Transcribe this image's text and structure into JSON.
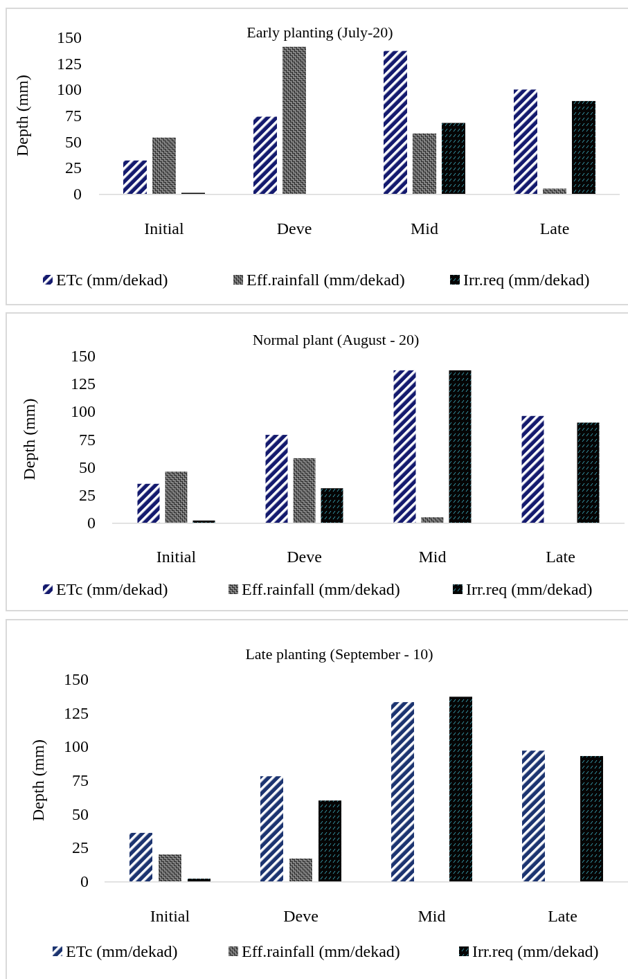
{
  "chart_data": [
    {
      "type": "bar",
      "title": "Early planting (July-20)",
      "ylabel": "Depth (mm)",
      "categories": [
        "Initial",
        "Deve",
        "Mid",
        "Late"
      ],
      "series": [
        {
          "name": "ETc (mm/dekad)",
          "color": "#141a6e",
          "values": [
            32,
            74,
            137,
            100
          ]
        },
        {
          "name": "Eff.rainfall (mm/dekad)",
          "color": "#2b2b2b",
          "values": [
            54,
            141,
            58,
            5
          ]
        },
        {
          "name": "Irr.req (mm/dekad)",
          "color": "#050505",
          "values": [
            1,
            0,
            68,
            89
          ]
        }
      ],
      "ylim": [
        0,
        150
      ],
      "yticks": [
        0,
        25,
        50,
        75,
        100,
        125,
        150
      ],
      "legend": "bottom"
    },
    {
      "type": "bar",
      "title": "Normal plant (August - 20)",
      "ylabel": "Depth (mm)",
      "categories": [
        "Initial",
        "Deve",
        "Mid",
        "Late"
      ],
      "series": [
        {
          "name": "ETc (mm/dekad)",
          "color": "#141a6e",
          "values": [
            35,
            79,
            137,
            96
          ]
        },
        {
          "name": "Eff.rainfall (mm/dekad)",
          "color": "#2b2b2b",
          "values": [
            46,
            58,
            5,
            0
          ]
        },
        {
          "name": "Irr.req (mm/dekad)",
          "color": "#050505",
          "values": [
            2,
            31,
            137,
            90
          ]
        }
      ],
      "ylim": [
        0,
        150
      ],
      "yticks": [
        0,
        25,
        50,
        75,
        100,
        125,
        150
      ],
      "legend": "bottom"
    },
    {
      "type": "bar",
      "title": "Late planting (September - 10)",
      "ylabel": "Depth (mm)",
      "categories": [
        "Initial",
        "Deve",
        "Mid",
        "Late"
      ],
      "series": [
        {
          "name": "ETc (mm/dekad)",
          "color": "#1c3470",
          "values": [
            36,
            78,
            133,
            97
          ]
        },
        {
          "name": "Eff.rainfall (mm/dekad)",
          "color": "#2b2b2b",
          "values": [
            20,
            17,
            0,
            0
          ]
        },
        {
          "name": "Irr.req (mm/dekad)",
          "color": "#050505",
          "values": [
            2,
            60,
            137,
            93
          ]
        }
      ],
      "ylim": [
        0,
        150
      ],
      "yticks": [
        0,
        25,
        50,
        75,
        100,
        125,
        150
      ],
      "legend": "bottom"
    }
  ]
}
